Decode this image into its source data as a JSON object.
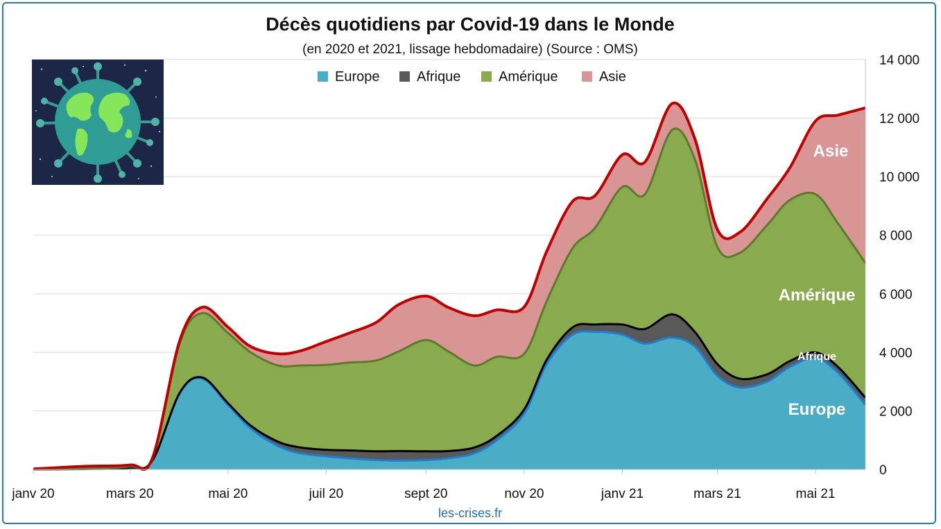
{
  "chart_data": {
    "type": "area",
    "stacked": true,
    "title": "Décès quotidiens par Covid-19 dans le Monde",
    "subtitle": "(en 2020 et 2021, lissage hebdomadaire) (Source : OMS)",
    "source_credit": "les-crises.fr",
    "x": [
      "2020-01-01",
      "2020-02-01",
      "2020-03-01",
      "2020-03-15",
      "2020-04-01",
      "2020-04-15",
      "2020-05-01",
      "2020-05-15",
      "2020-06-01",
      "2020-06-15",
      "2020-07-01",
      "2020-07-15",
      "2020-08-01",
      "2020-08-15",
      "2020-09-01",
      "2020-09-15",
      "2020-10-01",
      "2020-10-15",
      "2020-11-01",
      "2020-11-15",
      "2020-12-01",
      "2020-12-15",
      "2021-01-01",
      "2021-01-15",
      "2021-02-01",
      "2021-02-15",
      "2021-03-01",
      "2021-03-15",
      "2021-04-01",
      "2021-04-15",
      "2021-05-01",
      "2021-05-15",
      "2021-06-01"
    ],
    "x_ticks": [
      "janv 20",
      "mars 20",
      "mai 20",
      "juil 20",
      "sept 20",
      "nov 20",
      "janv 21",
      "mars 21",
      "mai 21"
    ],
    "y_ticks": [
      "0",
      "2 000",
      "4 000",
      "6 000",
      "8 000",
      "10 000",
      "12 000",
      "14 000"
    ],
    "ylim": [
      0,
      14000
    ],
    "legend_position": "top",
    "series": [
      {
        "name": "Europe",
        "color": "#4bacc6",
        "values": [
          5,
          15,
          60,
          300,
          2600,
          3100,
          2200,
          1400,
          800,
          550,
          450,
          380,
          320,
          300,
          320,
          380,
          550,
          1000,
          1900,
          3600,
          4600,
          4700,
          4600,
          4300,
          4500,
          4200,
          3200,
          2800,
          3000,
          3500,
          3800,
          3300,
          2200
        ]
      },
      {
        "name": "Afrique",
        "color": "#595959",
        "values": [
          0,
          0,
          2,
          5,
          20,
          40,
          60,
          100,
          150,
          200,
          220,
          270,
          300,
          330,
          300,
          250,
          200,
          150,
          150,
          150,
          250,
          250,
          350,
          500,
          800,
          500,
          400,
          300,
          250,
          200,
          200,
          200,
          250
        ]
      },
      {
        "name": "Amérique",
        "color": "#8aaa4e",
        "values": [
          1,
          10,
          40,
          60,
          1700,
          2200,
          2400,
          2500,
          2600,
          2800,
          2900,
          3000,
          3100,
          3400,
          3800,
          3400,
          2800,
          2700,
          1900,
          2000,
          2700,
          3300,
          4700,
          4600,
          6300,
          5900,
          4000,
          4300,
          5100,
          5500,
          5400,
          4900,
          4600
        ]
      },
      {
        "name": "Asie",
        "color": "#d99594",
        "values": [
          10,
          80,
          50,
          20,
          80,
          200,
          200,
          200,
          400,
          500,
          800,
          1000,
          1300,
          1600,
          1500,
          1500,
          1700,
          1600,
          1600,
          1700,
          1600,
          1100,
          1100,
          1100,
          900,
          700,
          600,
          700,
          900,
          1100,
          2500,
          3700,
          5300
        ]
      }
    ],
    "area_labels": [
      {
        "text": "Asie",
        "series": "Asie"
      },
      {
        "text": "Amérique",
        "series": "Amérique"
      },
      {
        "text": "Afrique",
        "series": "Afrique"
      },
      {
        "text": "Europe",
        "series": "Europe"
      }
    ]
  }
}
